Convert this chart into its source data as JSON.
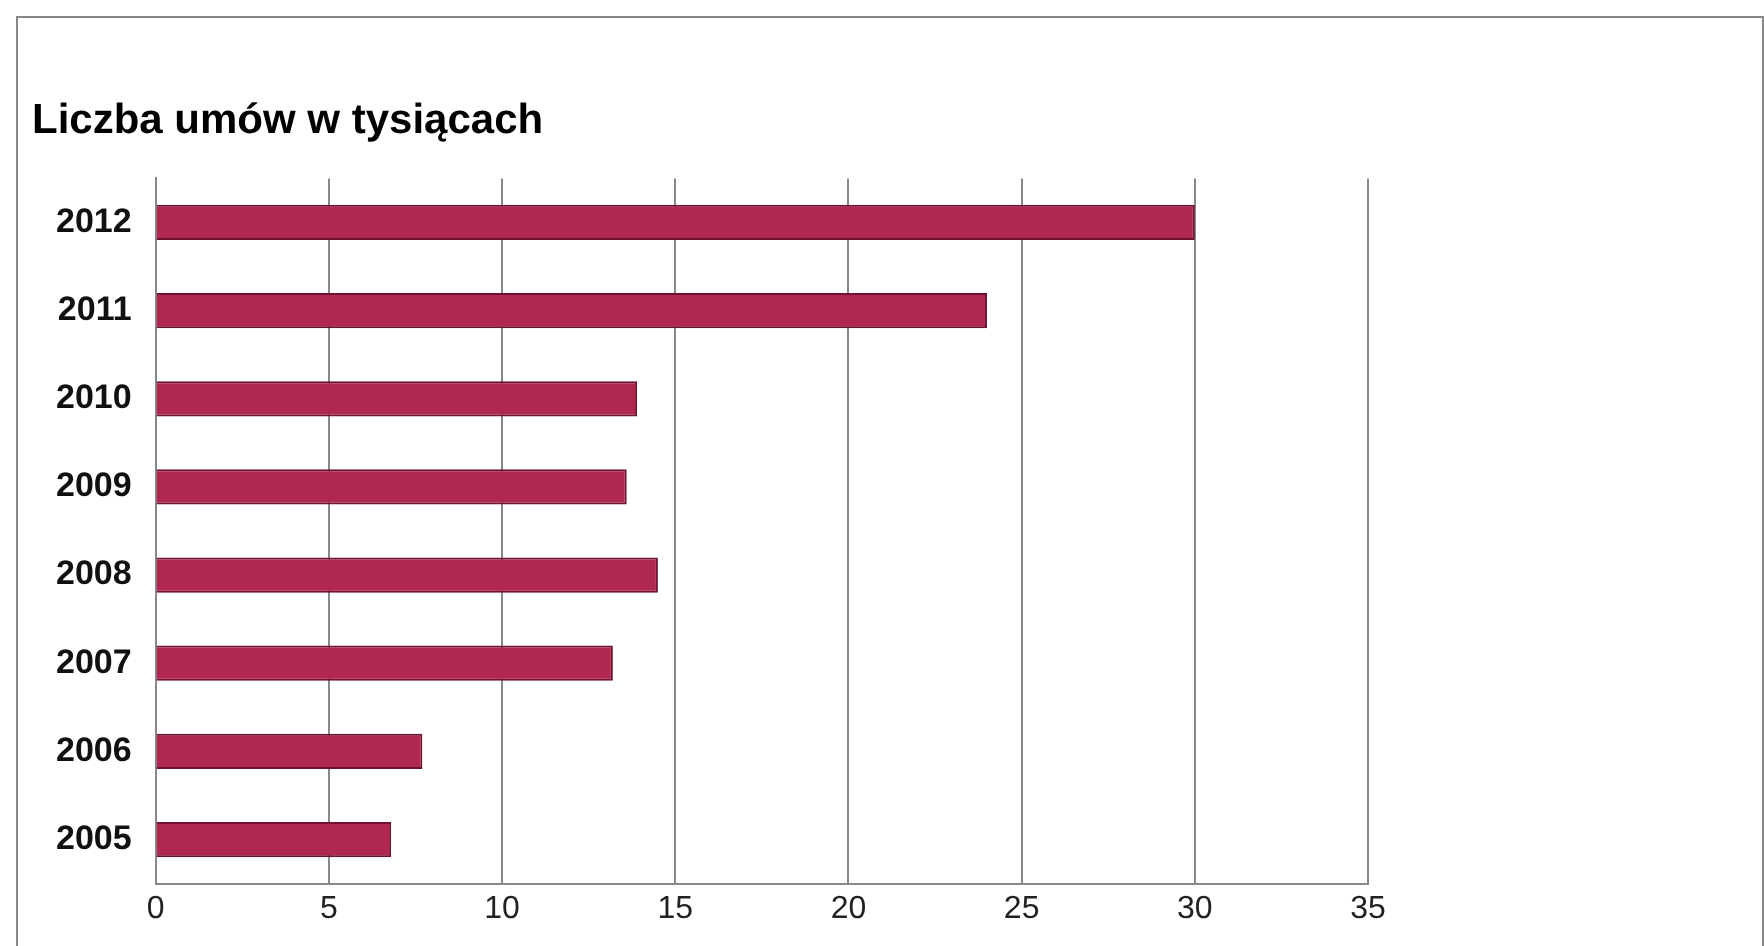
{
  "chart_data": {
    "type": "bar",
    "orientation": "horizontal",
    "title": "Liczba umów w tysiącach",
    "categories": [
      "2012",
      "2011",
      "2010",
      "2009",
      "2008",
      "2007",
      "2006",
      "2005"
    ],
    "values": [
      30,
      24,
      13.9,
      13.6,
      14.5,
      13.2,
      7.7,
      6.8
    ],
    "color": "#b0284f",
    "xlim": [
      0,
      35
    ],
    "xticks": [
      0,
      5,
      10,
      15,
      20,
      25,
      30,
      35
    ],
    "grid": "x",
    "legend": false
  }
}
